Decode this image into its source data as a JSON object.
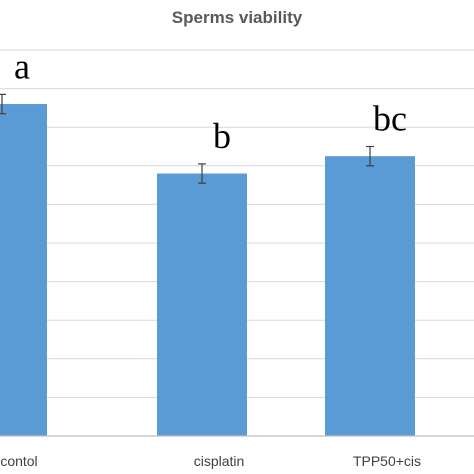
{
  "chart_data": {
    "type": "bar",
    "title": "Sperms viability",
    "categories": [
      "contol",
      "cisplatin",
      "TPP50+cis"
    ],
    "values": [
      86,
      68,
      72.5
    ],
    "errors": [
      2.5,
      2.5,
      2.5
    ],
    "significance_labels": [
      "a",
      "b",
      "bc"
    ],
    "ylim": [
      0,
      100
    ],
    "grid": true,
    "colors": {
      "bar": "#5B9BD5",
      "grid": "#D9D9D9",
      "axis": "#BFBFBF",
      "error_bar": "#404040"
    }
  }
}
